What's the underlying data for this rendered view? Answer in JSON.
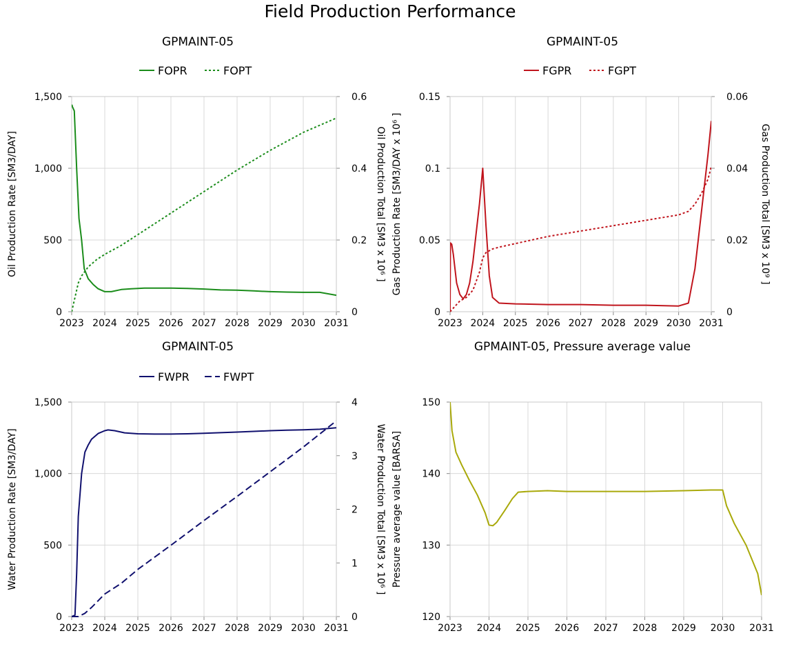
{
  "title": "Field Production Performance",
  "chart_data": [
    {
      "type": "line",
      "title": "GPMAINT-05",
      "xlabel": "",
      "ylabel": "Oil Production Rate [SM3/DAY]",
      "y2label": "Oil Production Total [SM3 x 10⁶ ]",
      "xlim": [
        2023,
        2031
      ],
      "ylim": [
        0,
        1500
      ],
      "y2lim": [
        0,
        0.6
      ],
      "xticks": [
        "2023",
        "2024",
        "2025",
        "2026",
        "2027",
        "2028",
        "2029",
        "2030",
        "2031"
      ],
      "yticks": [
        "0",
        "500",
        "1,000",
        "1,500"
      ],
      "y2ticks": [
        "0",
        "0.2",
        "0.4",
        "0.6"
      ],
      "grid": true,
      "legend": "top-center",
      "series": [
        {
          "name": "FOPR",
          "axis": "left",
          "color": "#1a8c1a",
          "dash": "solid",
          "x": [
            2023.0,
            2023.01,
            2023.02,
            2023.08,
            2023.15,
            2023.22,
            2023.3,
            2023.38,
            2023.5,
            2023.65,
            2023.8,
            2024.0,
            2024.2,
            2024.5,
            2024.8,
            2025.2,
            2025.6,
            2026.0,
            2026.5,
            2027.0,
            2027.5,
            2028.0,
            2028.5,
            2029.0,
            2029.5,
            2030.0,
            2030.5,
            2031.0
          ],
          "y": [
            1440,
            1440,
            1430,
            1400,
            1000,
            650,
            500,
            300,
            230,
            190,
            160,
            140,
            140,
            155,
            160,
            165,
            165,
            165,
            162,
            158,
            152,
            150,
            145,
            140,
            137,
            135,
            135,
            115
          ]
        },
        {
          "name": "FOPT",
          "axis": "right",
          "color": "#1a8c1a",
          "dash": "dotted",
          "x": [
            2023.0,
            2023.05,
            2023.1,
            2023.2,
            2023.3,
            2023.5,
            2023.75,
            2024.0,
            2024.5,
            2025.0,
            2026.0,
            2027.0,
            2028.0,
            2029.0,
            2030.0,
            2031.0
          ],
          "y": [
            0.0,
            0.02,
            0.04,
            0.08,
            0.1,
            0.125,
            0.145,
            0.16,
            0.185,
            0.215,
            0.275,
            0.335,
            0.395,
            0.45,
            0.5,
            0.54
          ]
        }
      ]
    },
    {
      "type": "line",
      "title": "GPMAINT-05",
      "xlabel": "",
      "ylabel": "Gas Production Rate [SM3/DAY x 10⁶ ]",
      "y2label": "Gas Production Total [SM3 x 10⁹ ]",
      "xlim": [
        2023,
        2031
      ],
      "ylim": [
        0,
        0.15
      ],
      "y2lim": [
        0,
        0.06
      ],
      "xticks": [
        "2023",
        "2024",
        "2025",
        "2026",
        "2027",
        "2028",
        "2029",
        "2030",
        "2031"
      ],
      "yticks": [
        "0",
        "0.05",
        "0.1",
        "0.15"
      ],
      "y2ticks": [
        "0",
        "0.02",
        "0.04",
        "0.06"
      ],
      "grid": true,
      "legend": "top-center",
      "series": [
        {
          "name": "FGPR",
          "axis": "left",
          "color": "#c0141c",
          "dash": "solid",
          "x": [
            2023.0,
            2023.01,
            2023.05,
            2023.1,
            2023.2,
            2023.3,
            2023.4,
            2023.5,
            2023.6,
            2023.7,
            2023.8,
            2023.9,
            2024.0,
            2024.1,
            2024.2,
            2024.3,
            2024.5,
            2025.0,
            2026.0,
            2027.0,
            2028.0,
            2029.0,
            2030.0,
            2030.3,
            2030.5,
            2030.7,
            2030.9,
            2031.0
          ],
          "y": [
            0.0,
            0.048,
            0.047,
            0.04,
            0.02,
            0.012,
            0.009,
            0.012,
            0.02,
            0.035,
            0.055,
            0.075,
            0.1,
            0.06,
            0.025,
            0.01,
            0.006,
            0.0055,
            0.005,
            0.005,
            0.0045,
            0.0045,
            0.004,
            0.006,
            0.03,
            0.07,
            0.11,
            0.133
          ]
        },
        {
          "name": "FGPT",
          "axis": "right",
          "color": "#c0141c",
          "dash": "dotted",
          "x": [
            2023.0,
            2023.1,
            2023.3,
            2023.5,
            2023.7,
            2023.9,
            2024.0,
            2024.1,
            2024.3,
            2024.5,
            2025.0,
            2026.0,
            2027.0,
            2028.0,
            2029.0,
            2030.0,
            2030.3,
            2030.5,
            2030.7,
            2030.9,
            2031.0
          ],
          "y": [
            0.0,
            0.001,
            0.003,
            0.004,
            0.006,
            0.011,
            0.015,
            0.0165,
            0.0175,
            0.018,
            0.019,
            0.021,
            0.0225,
            0.024,
            0.0255,
            0.027,
            0.028,
            0.03,
            0.033,
            0.037,
            0.0405
          ]
        }
      ]
    },
    {
      "type": "line",
      "title": "GPMAINT-05",
      "xlabel": "",
      "ylabel": "Water Production Rate [SM3/DAY]",
      "y2label": "Water Production Total [SM3 x 10⁶ ]",
      "xlim": [
        2023,
        2031
      ],
      "ylim": [
        0,
        1500
      ],
      "y2lim": [
        0,
        4
      ],
      "xticks": [
        "2023",
        "2024",
        "2025",
        "2026",
        "2027",
        "2028",
        "2029",
        "2030",
        "2031"
      ],
      "yticks": [
        "0",
        "500",
        "1,000",
        "1,500"
      ],
      "y2ticks": [
        "0",
        "1",
        "2",
        "3",
        "4"
      ],
      "grid": true,
      "legend": "top-center",
      "series": [
        {
          "name": "FWPR",
          "axis": "left",
          "color": "#10106e",
          "dash": "solid",
          "x": [
            2023.0,
            2023.05,
            2023.1,
            2023.15,
            2023.2,
            2023.3,
            2023.4,
            2023.5,
            2023.6,
            2023.8,
            2024.0,
            2024.1,
            2024.3,
            2024.6,
            2025.0,
            2025.5,
            2026.0,
            2026.5,
            2027.0,
            2027.5,
            2028.0,
            2028.5,
            2029.0,
            2029.5,
            2030.0,
            2030.5,
            2031.0
          ],
          "y": [
            0,
            5,
            10,
            300,
            700,
            1000,
            1150,
            1200,
            1240,
            1280,
            1300,
            1305,
            1300,
            1285,
            1278,
            1276,
            1276,
            1278,
            1282,
            1286,
            1290,
            1295,
            1300,
            1303,
            1306,
            1310,
            1320
          ]
        },
        {
          "name": "FWPT",
          "axis": "right",
          "color": "#10106e",
          "dash": "dashed",
          "x": [
            2023.0,
            2023.2,
            2023.4,
            2023.6,
            2024.0,
            2024.5,
            2025.0,
            2026.0,
            2027.0,
            2028.0,
            2029.0,
            2030.0,
            2031.0
          ],
          "y": [
            0.0,
            0.0,
            0.06,
            0.17,
            0.42,
            0.62,
            0.88,
            1.33,
            1.79,
            2.24,
            2.7,
            3.16,
            3.65
          ]
        }
      ]
    },
    {
      "type": "line",
      "title": "GPMAINT-05, Pressure average value",
      "xlabel": "",
      "ylabel": "Pressure average value [BARSA]",
      "xlim": [
        2023,
        2031
      ],
      "ylim": [
        120,
        150
      ],
      "xticks": [
        "2023",
        "2024",
        "2025",
        "2026",
        "2027",
        "2028",
        "2029",
        "2030",
        "2031"
      ],
      "yticks": [
        "120",
        "130",
        "140",
        "150"
      ],
      "grid": true,
      "series": [
        {
          "name": "",
          "axis": "left",
          "color": "#a9a90a",
          "dash": "solid",
          "x": [
            2023.0,
            2023.05,
            2023.15,
            2023.3,
            2023.5,
            2023.7,
            2023.9,
            2024.0,
            2024.1,
            2024.2,
            2024.4,
            2024.6,
            2024.75,
            2025.0,
            2025.5,
            2026.0,
            2027.0,
            2028.0,
            2029.0,
            2029.7,
            2030.0,
            2030.1,
            2030.3,
            2030.6,
            2030.9,
            2031.0
          ],
          "y": [
            150,
            146,
            143,
            141.2,
            139,
            137,
            134.5,
            132.8,
            132.7,
            133.2,
            134.8,
            136.5,
            137.4,
            137.5,
            137.6,
            137.5,
            137.5,
            137.5,
            137.6,
            137.7,
            137.7,
            135.5,
            133,
            130,
            126,
            123
          ]
        }
      ]
    }
  ]
}
